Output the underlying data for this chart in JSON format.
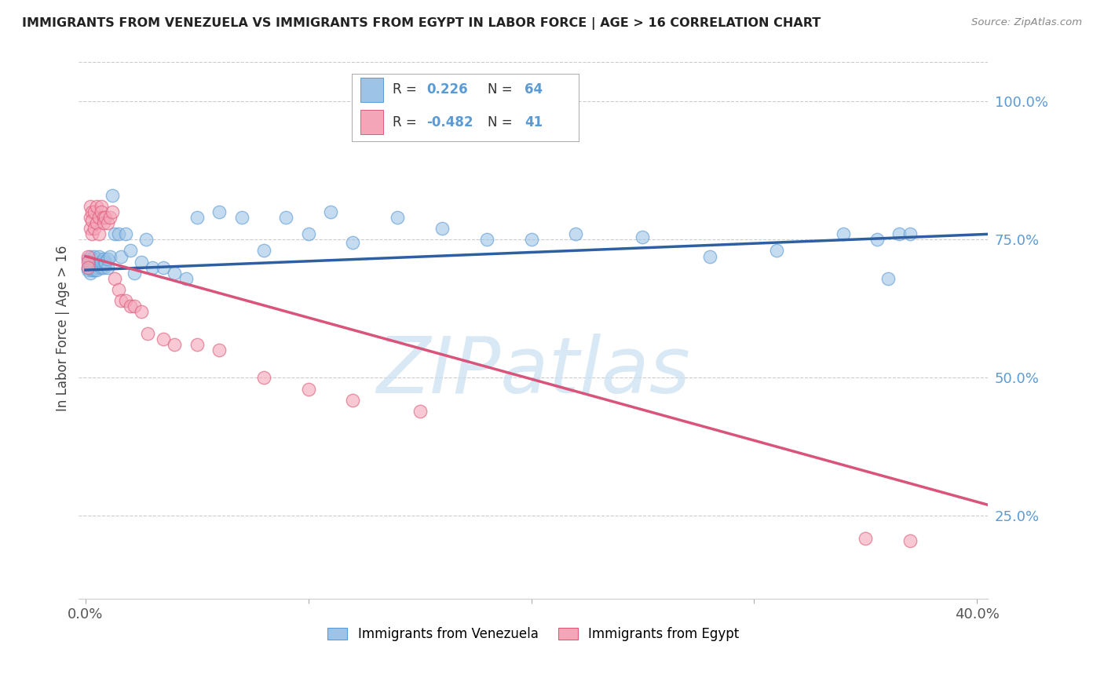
{
  "title": "IMMIGRANTS FROM VENEZUELA VS IMMIGRANTS FROM EGYPT IN LABOR FORCE | AGE > 16 CORRELATION CHART",
  "source": "Source: ZipAtlas.com",
  "ylabel": "In Labor Force | Age > 16",
  "xlim": [
    -0.003,
    0.405
  ],
  "ylim": [
    0.1,
    1.08
  ],
  "yticks": [
    0.25,
    0.5,
    0.75,
    1.0
  ],
  "ytick_labels": [
    "25.0%",
    "50.0%",
    "75.0%",
    "100.0%"
  ],
  "xticks": [
    0.0,
    0.1,
    0.2,
    0.3,
    0.4
  ],
  "xtick_labels": [
    "0.0%",
    "",
    "",
    "",
    "40.0%"
  ],
  "blue_color": "#9dc3e6",
  "pink_color": "#f4a6b8",
  "blue_edge_color": "#5b9bd5",
  "pink_edge_color": "#e05a7a",
  "blue_line_color": "#2e5fa3",
  "pink_line_color": "#d9547a",
  "axis_label_color": "#5b9bd5",
  "watermark": "ZIPatlas",
  "watermark_color": "#c8dff0",
  "venezuela_x": [
    0.001,
    0.001,
    0.001,
    0.002,
    0.002,
    0.002,
    0.002,
    0.003,
    0.003,
    0.003,
    0.003,
    0.004,
    0.004,
    0.004,
    0.004,
    0.005,
    0.005,
    0.005,
    0.006,
    0.006,
    0.006,
    0.007,
    0.007,
    0.008,
    0.008,
    0.009,
    0.009,
    0.01,
    0.01,
    0.011,
    0.012,
    0.013,
    0.015,
    0.016,
    0.018,
    0.02,
    0.022,
    0.025,
    0.027,
    0.03,
    0.035,
    0.04,
    0.045,
    0.05,
    0.06,
    0.07,
    0.08,
    0.09,
    0.1,
    0.11,
    0.12,
    0.14,
    0.16,
    0.18,
    0.2,
    0.22,
    0.25,
    0.28,
    0.31,
    0.34,
    0.355,
    0.36,
    0.365,
    0.37
  ],
  "venezuela_y": [
    0.715,
    0.7,
    0.695,
    0.72,
    0.7,
    0.69,
    0.71,
    0.7,
    0.705,
    0.695,
    0.71,
    0.7,
    0.695,
    0.72,
    0.705,
    0.7,
    0.71,
    0.695,
    0.715,
    0.705,
    0.72,
    0.7,
    0.71,
    0.715,
    0.7,
    0.705,
    0.71,
    0.7,
    0.715,
    0.72,
    0.83,
    0.76,
    0.76,
    0.72,
    0.76,
    0.73,
    0.69,
    0.71,
    0.75,
    0.7,
    0.7,
    0.69,
    0.68,
    0.79,
    0.8,
    0.79,
    0.73,
    0.79,
    0.76,
    0.8,
    0.745,
    0.79,
    0.77,
    0.75,
    0.75,
    0.76,
    0.755,
    0.72,
    0.73,
    0.76,
    0.75,
    0.68,
    0.76,
    0.76
  ],
  "egypt_x": [
    0.001,
    0.001,
    0.001,
    0.002,
    0.002,
    0.002,
    0.003,
    0.003,
    0.003,
    0.004,
    0.004,
    0.005,
    0.005,
    0.006,
    0.006,
    0.007,
    0.007,
    0.008,
    0.008,
    0.009,
    0.01,
    0.011,
    0.012,
    0.013,
    0.015,
    0.016,
    0.018,
    0.02,
    0.022,
    0.025,
    0.028,
    0.035,
    0.04,
    0.05,
    0.06,
    0.08,
    0.1,
    0.12,
    0.15,
    0.35,
    0.37
  ],
  "egypt_y": [
    0.72,
    0.71,
    0.7,
    0.81,
    0.79,
    0.77,
    0.8,
    0.785,
    0.76,
    0.8,
    0.77,
    0.81,
    0.78,
    0.79,
    0.76,
    0.81,
    0.8,
    0.79,
    0.78,
    0.79,
    0.78,
    0.79,
    0.8,
    0.68,
    0.66,
    0.64,
    0.64,
    0.63,
    0.63,
    0.62,
    0.58,
    0.57,
    0.56,
    0.56,
    0.55,
    0.5,
    0.48,
    0.46,
    0.44,
    0.21,
    0.205
  ],
  "blue_line_x": [
    0.0,
    0.405
  ],
  "blue_line_y": [
    0.695,
    0.76
  ],
  "pink_line_x": [
    0.0,
    0.405
  ],
  "pink_line_y": [
    0.72,
    0.27
  ]
}
